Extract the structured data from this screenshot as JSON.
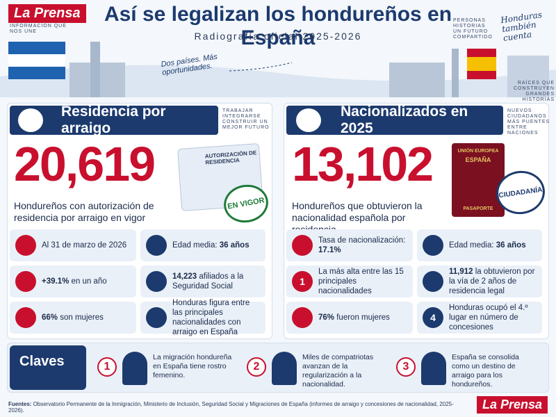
{
  "header": {
    "brand": "La Prensa",
    "tagline": "INFORMACIÓN QUE NOS UNE",
    "title": "Así se legalizan los hondureños en España",
    "subtitle": "Radiografía oficial 2025-2026",
    "note": "PERSONAS HISTORIAS UN FUTURO COMPARTIDO",
    "script": "Honduras también cuenta",
    "slogan": "Dos países. Más oportunidades.",
    "roots": "RAÍCES QUE CONSTRUYEN GRANDES HISTORIAS"
  },
  "left": {
    "title": "Residencia por arraigo",
    "side": "TRABAJAR INTEGRARSE CONSTRUIR UN MEJOR FUTURO",
    "big": "20,619",
    "desc": "Hondureños con autorización de residencia por arraigo en vigor",
    "card": "AUTORIZACIÓN DE RESIDENCIA",
    "stamp": "EN VIGOR",
    "stats": [
      {
        "lead": "Al 31 de marzo de 2026"
      },
      {
        "lead": "Edad media: ",
        "strong": "36 años"
      },
      {
        "strong": "+39.1%",
        "tail": " en un año"
      },
      {
        "strong": "14,223",
        "tail": " afiliados a la Seguridad Social"
      },
      {
        "strong": "66%",
        "tail": " son mujeres"
      },
      {
        "lead": "Honduras figura entre las principales nacionalidades con arraigo en España"
      }
    ]
  },
  "right": {
    "title": "Nacionalizados en 2025",
    "side": "NUEVOS CIUDADANOS MÁS PUENTES ENTRE NACIONES",
    "big": "13,102",
    "desc": "Hondureños que obtuvieron la nacionalidad española por residencia",
    "passport_top": "UNIÓN EUROPEA",
    "passport_country": "ESPAÑA",
    "passport_bottom": "PASAPORTE",
    "stamp": "CIUDADANÍA",
    "stats": [
      {
        "lead": "Tasa de nacionalización: ",
        "strong": "17.1%"
      },
      {
        "lead": "Edad media: ",
        "strong": "36 años"
      },
      {
        "lead": "La más alta entre las 15 principales nacionalidades",
        "icon": "1"
      },
      {
        "strong": "11,912",
        "tail": " la obtuvieron por la vía de 2 años de residencia legal"
      },
      {
        "strong": "76%",
        "tail": " fueron mujeres"
      },
      {
        "lead": "Honduras ocupó el 4.º lugar en número de concesiones",
        "icon": "4"
      }
    ]
  },
  "claves": {
    "title": "Claves",
    "items": [
      {
        "n": "1",
        "text": "La migración hondureña en España tiene rostro femenino."
      },
      {
        "n": "2",
        "text": "Miles de compatriotas avanzan de la regularización a la nacionalidad."
      },
      {
        "n": "3",
        "text": "España se consolida como un destino de arraigo para los hondureños."
      }
    ]
  },
  "footer": {
    "label": "Fuentes:",
    "text": " Observatorio Permanente de la Inmigración, Ministerio de Inclusión, Seguridad Social y Migraciones de España (informes de arraigo y concesiones de nacionalidad, 2025-2026).",
    "brand": "La Prensa"
  }
}
